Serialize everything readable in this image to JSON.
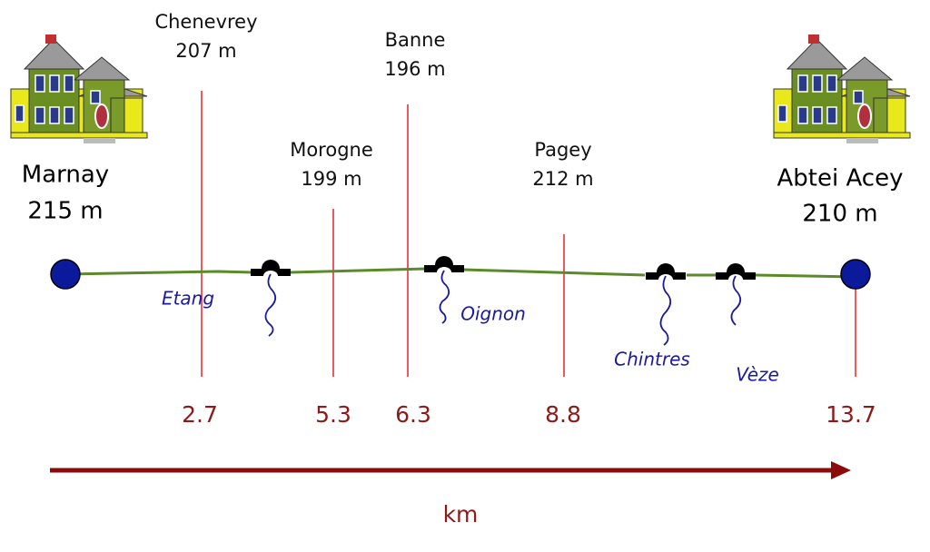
{
  "origin": {
    "name": "Marnay",
    "altitude": "215 m"
  },
  "destination": {
    "name": "Abtei Acey",
    "altitude": "210 m"
  },
  "stops": [
    {
      "name": "Chenevrey",
      "altitude": "207 m"
    },
    {
      "name": "Morogne",
      "altitude": "199 m"
    },
    {
      "name": "Banne",
      "altitude": "196 m"
    },
    {
      "name": "Pagey",
      "altitude": "212 m"
    }
  ],
  "distances": [
    "2.7",
    "5.3",
    "6.3",
    "8.8",
    "13.7"
  ],
  "rivers": [
    "Etang",
    "Oignon",
    "Chintres",
    "Vèze"
  ],
  "axis_label": "km"
}
